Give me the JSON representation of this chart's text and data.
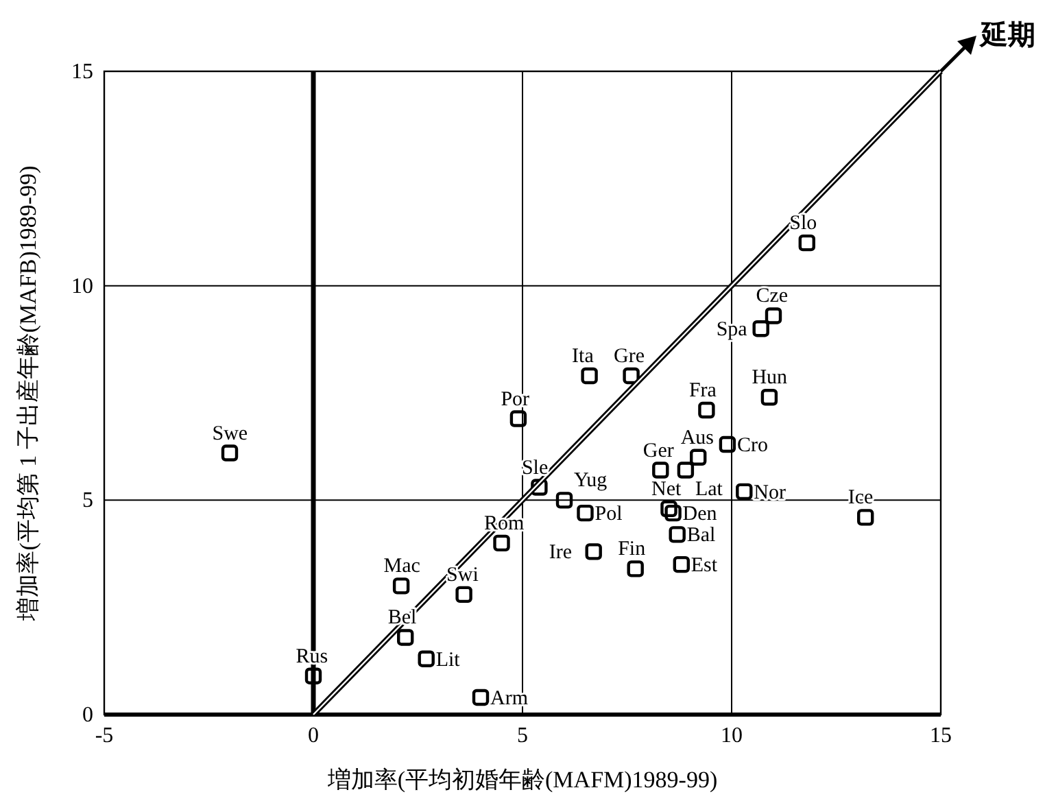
{
  "chart_data": {
    "type": "scatter",
    "xlabel": "増加率(平均初婚年齢(MAFM)1989-99)",
    "ylabel": "増加率(平均第 1 子出産年齢(MAFB)1989-99)",
    "xlim": [
      -5,
      15
    ],
    "ylim": [
      0,
      15
    ],
    "xticks": [
      -5,
      0,
      5,
      10,
      15
    ],
    "yticks": [
      0,
      5,
      10,
      15
    ],
    "grid": true,
    "legend": false,
    "marker": "square",
    "ref_lines": [
      {
        "axis": "x",
        "value": 0,
        "color": "#000000"
      }
    ],
    "annotations": [
      {
        "text": "延期",
        "x": 15,
        "y": 15
      }
    ],
    "series": [
      {
        "name": "Swe",
        "color": "#000000",
        "x": [
          -2.0
        ],
        "values": [
          6.1
        ]
      },
      {
        "name": "Rus",
        "color": "#000000",
        "x": [
          0.0
        ],
        "values": [
          0.9
        ]
      },
      {
        "name": "Mac",
        "color": "#000000",
        "x": [
          2.1
        ],
        "values": [
          3.0
        ]
      },
      {
        "name": "Bel",
        "color": "#000000",
        "x": [
          2.2
        ],
        "values": [
          1.8
        ]
      },
      {
        "name": "Lit",
        "color": "#000000",
        "x": [
          2.7
        ],
        "values": [
          1.3
        ]
      },
      {
        "name": "Swi",
        "color": "#000000",
        "x": [
          3.6
        ],
        "values": [
          2.8
        ]
      },
      {
        "name": "Arm",
        "color": "#000000",
        "x": [
          4.0
        ],
        "values": [
          0.4
        ]
      },
      {
        "name": "Rom",
        "color": "#000000",
        "x": [
          4.5
        ],
        "values": [
          4.0
        ]
      },
      {
        "name": "Por",
        "color": "#000000",
        "x": [
          4.9
        ],
        "values": [
          6.9
        ]
      },
      {
        "name": "Sle",
        "color": "#000000",
        "x": [
          5.4
        ],
        "values": [
          5.3
        ]
      },
      {
        "name": "Yug",
        "color": "#000000",
        "x": [
          6.0
        ],
        "values": [
          5.0
        ]
      },
      {
        "name": "Pol",
        "color": "#000000",
        "x": [
          6.5
        ],
        "values": [
          4.7
        ]
      },
      {
        "name": "Ire",
        "color": "#000000",
        "x": [
          6.7
        ],
        "values": [
          3.8
        ]
      },
      {
        "name": "Fin",
        "color": "#000000",
        "x": [
          7.7
        ],
        "values": [
          3.4
        ]
      },
      {
        "name": "Ita",
        "color": "#000000",
        "x": [
          6.6
        ],
        "values": [
          7.9
        ]
      },
      {
        "name": "Gre",
        "color": "#000000",
        "x": [
          7.6
        ],
        "values": [
          7.9
        ]
      },
      {
        "name": "Ger",
        "color": "#000000",
        "x": [
          8.3
        ],
        "values": [
          5.7
        ]
      },
      {
        "name": "Net",
        "color": "#000000",
        "x": [
          8.5
        ],
        "values": [
          4.8
        ]
      },
      {
        "name": "Den",
        "color": "#000000",
        "x": [
          8.6
        ],
        "values": [
          4.7
        ]
      },
      {
        "name": "Bal",
        "color": "#000000",
        "x": [
          8.7
        ],
        "values": [
          4.2
        ]
      },
      {
        "name": "Est",
        "color": "#000000",
        "x": [
          8.8
        ],
        "values": [
          3.5
        ]
      },
      {
        "name": "Lat",
        "color": "#000000",
        "x": [
          8.9
        ],
        "values": [
          5.7
        ]
      },
      {
        "name": "Aus",
        "color": "#000000",
        "x": [
          9.2
        ],
        "values": [
          6.0
        ]
      },
      {
        "name": "Fra",
        "color": "#000000",
        "x": [
          9.4
        ],
        "values": [
          7.1
        ]
      },
      {
        "name": "Cro",
        "color": "#000000",
        "x": [
          9.9
        ],
        "values": [
          6.3
        ]
      },
      {
        "name": "Nor",
        "color": "#000000",
        "x": [
          10.3
        ],
        "values": [
          5.2
        ]
      },
      {
        "name": "Ice",
        "color": "#000000",
        "x": [
          13.2
        ],
        "values": [
          4.6
        ]
      },
      {
        "name": "Slo",
        "color": "#000000",
        "x": [
          11.8
        ],
        "values": [
          11.0
        ]
      },
      {
        "name": "Cze",
        "color": "#000000",
        "x": [
          11.0
        ],
        "values": [
          9.3
        ]
      },
      {
        "name": "Spa",
        "color": "#000000",
        "x": [
          10.7
        ],
        "values": [
          9.0
        ]
      },
      {
        "name": "Hun",
        "color": "#000000",
        "x": [
          10.9
        ],
        "values": [
          7.4
        ]
      },
      {
        "type": "line",
        "color": "#000000",
        "marker": "none",
        "x": [
          0,
          15
        ],
        "values": [
          0,
          15
        ]
      }
    ]
  }
}
